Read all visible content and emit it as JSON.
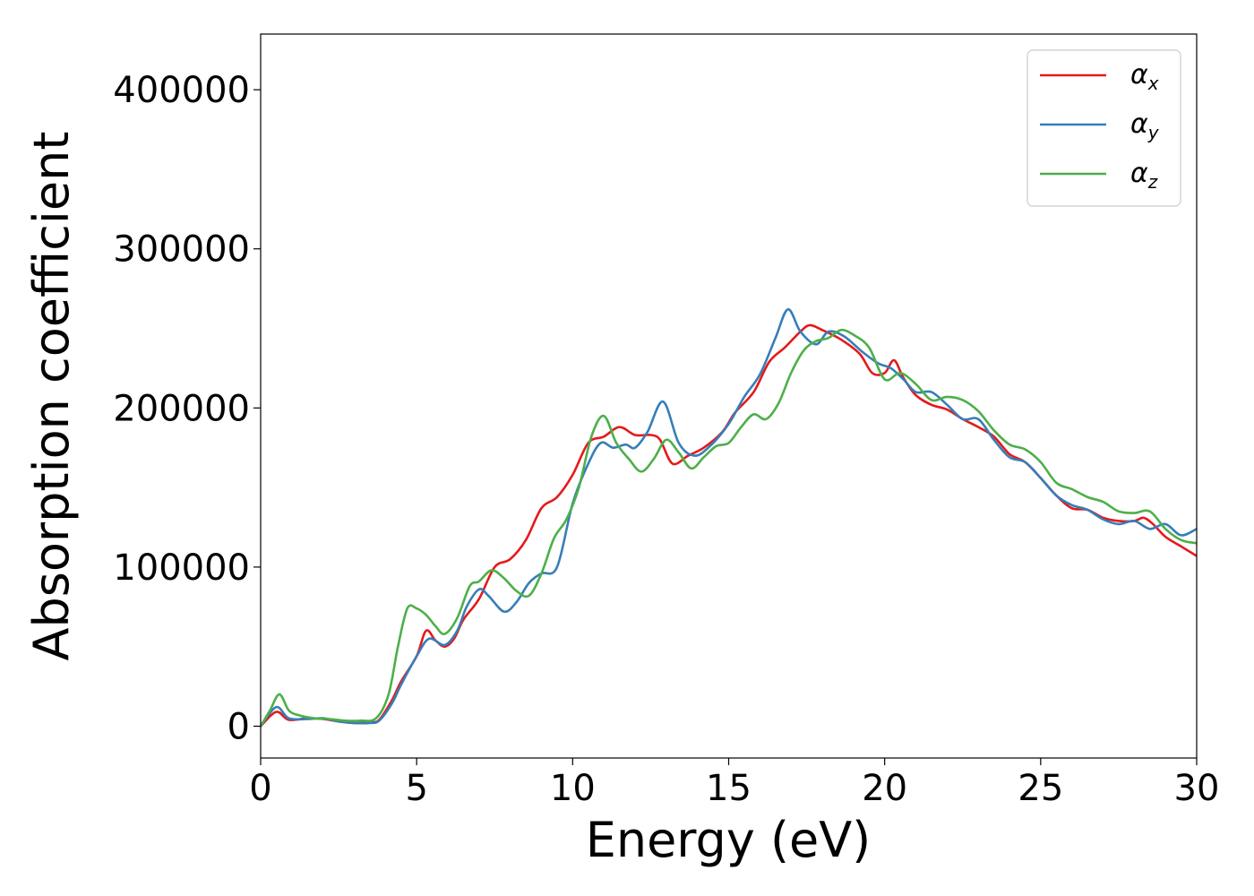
{
  "chart_data": {
    "type": "line",
    "title": "",
    "xlabel": "Energy (eV)",
    "ylabel": "Absorption coefficient",
    "xlim": [
      0,
      30
    ],
    "ylim": [
      -20000,
      435000
    ],
    "xticks": [
      0,
      5,
      10,
      15,
      20,
      25,
      30
    ],
    "xtick_labels": [
      "0",
      "5",
      "10",
      "15",
      "20",
      "25",
      "30"
    ],
    "yticks": [
      0,
      100000,
      200000,
      300000,
      400000
    ],
    "ytick_labels": [
      "0",
      "100000",
      "200000",
      "300000",
      "400000"
    ],
    "grid": false,
    "legend_position": "top-right",
    "series": [
      {
        "name": "α_x",
        "symbol": "α",
        "subscript": "x",
        "color": "#e41a1c",
        "x": [
          0,
          0.5,
          0.9,
          1.5,
          2.0,
          2.5,
          3.0,
          3.5,
          3.8,
          4.2,
          4.5,
          5.0,
          5.3,
          5.6,
          5.9,
          6.2,
          6.5,
          7.0,
          7.5,
          8.0,
          8.5,
          9.0,
          9.5,
          10.0,
          10.5,
          11.0,
          11.5,
          12.0,
          12.5,
          12.8,
          13.2,
          13.7,
          14.2,
          14.8,
          15.2,
          15.8,
          16.3,
          16.8,
          17.3,
          17.6,
          18.0,
          18.6,
          19.2,
          19.6,
          20.0,
          20.3,
          20.6,
          21.0,
          21.5,
          22.0,
          22.5,
          23.0,
          23.5,
          24.0,
          24.5,
          25.0,
          25.5,
          26.0,
          26.5,
          27.0,
          27.5,
          28.0,
          28.3,
          28.6,
          29.0,
          29.5,
          30.0
        ],
        "y": [
          0,
          9000,
          4000,
          5000,
          4500,
          3000,
          2000,
          2500,
          4000,
          16000,
          28000,
          44000,
          60000,
          54000,
          50000,
          55000,
          67000,
          80000,
          100000,
          105000,
          117000,
          137000,
          144000,
          158000,
          178000,
          182000,
          188000,
          183000,
          183000,
          180000,
          165000,
          170000,
          175000,
          185000,
          197000,
          210000,
          229000,
          238000,
          248000,
          252000,
          249000,
          243000,
          234000,
          222000,
          222000,
          230000,
          219000,
          208000,
          202000,
          199000,
          193000,
          188000,
          182000,
          171000,
          166000,
          156000,
          145000,
          137000,
          136000,
          131000,
          129000,
          129000,
          131000,
          127000,
          119000,
          113000,
          107000
        ]
      },
      {
        "name": "α_y",
        "symbol": "α",
        "subscript": "y",
        "color": "#377eb8",
        "x": [
          0,
          0.5,
          0.9,
          1.5,
          2.0,
          2.5,
          3.0,
          3.5,
          3.8,
          4.2,
          4.5,
          5.0,
          5.4,
          5.9,
          6.3,
          6.6,
          7.0,
          7.3,
          7.8,
          8.2,
          8.6,
          9.0,
          9.5,
          10.0,
          10.5,
          10.9,
          11.3,
          11.7,
          12.0,
          12.4,
          12.9,
          13.4,
          13.9,
          14.4,
          15.0,
          15.5,
          16.0,
          16.5,
          16.9,
          17.3,
          17.8,
          18.2,
          18.7,
          19.3,
          19.8,
          20.2,
          20.6,
          21.0,
          21.5,
          22.0,
          22.5,
          23.0,
          23.5,
          24.0,
          24.5,
          25.0,
          25.5,
          26.0,
          26.5,
          27.0,
          27.5,
          28.0,
          28.5,
          29.0,
          29.5,
          30.0
        ],
        "y": [
          0,
          12000,
          5000,
          4500,
          5000,
          3000,
          2000,
          2000,
          3500,
          14000,
          26000,
          44000,
          55000,
          51000,
          60000,
          75000,
          86000,
          82000,
          72000,
          78000,
          90000,
          96000,
          100000,
          140000,
          165000,
          178000,
          175000,
          177000,
          175000,
          185000,
          204000,
          178000,
          170000,
          176000,
          190000,
          207000,
          221000,
          244000,
          262000,
          248000,
          240000,
          248000,
          245000,
          235000,
          228000,
          225000,
          218000,
          210000,
          210000,
          202000,
          193000,
          193000,
          180000,
          169000,
          166000,
          156000,
          145000,
          139000,
          136000,
          130000,
          127000,
          129000,
          124000,
          127000,
          120000,
          124000
        ]
      },
      {
        "name": "α_z",
        "symbol": "α",
        "subscript": "z",
        "color": "#4daf4a",
        "x": [
          0,
          0.3,
          0.6,
          0.9,
          1.2,
          1.7,
          2.2,
          2.7,
          3.2,
          3.7,
          4.1,
          4.4,
          4.7,
          5.0,
          5.3,
          5.6,
          5.9,
          6.3,
          6.7,
          7.0,
          7.4,
          7.8,
          8.2,
          8.6,
          9.0,
          9.4,
          9.8,
          10.2,
          10.6,
          11.0,
          11.4,
          11.8,
          12.2,
          12.6,
          13.0,
          13.4,
          13.8,
          14.2,
          14.6,
          15.0,
          15.4,
          15.8,
          16.2,
          16.6,
          17.0,
          17.4,
          17.8,
          18.2,
          18.6,
          19.0,
          19.5,
          20.0,
          20.5,
          21.0,
          21.5,
          22.0,
          22.5,
          23.0,
          23.5,
          24.0,
          24.5,
          25.0,
          25.5,
          26.0,
          26.5,
          27.0,
          27.5,
          28.0,
          28.5,
          29.0,
          29.5,
          30.0
        ],
        "y": [
          0,
          10000,
          20000,
          10000,
          7000,
          5000,
          4500,
          3500,
          3500,
          5000,
          20000,
          50000,
          74000,
          74000,
          70000,
          63000,
          58000,
          68000,
          88000,
          91000,
          98000,
          93000,
          85000,
          82000,
          96000,
          118000,
          130000,
          150000,
          182000,
          195000,
          178000,
          168000,
          160000,
          168000,
          180000,
          172000,
          162000,
          169000,
          176000,
          178000,
          188000,
          196000,
          193000,
          203000,
          222000,
          236000,
          242000,
          244000,
          249000,
          246000,
          238000,
          218000,
          222000,
          215000,
          205000,
          207000,
          205000,
          198000,
          186000,
          177000,
          174000,
          166000,
          153000,
          149000,
          144000,
          141000,
          135000,
          134000,
          135000,
          124000,
          117000,
          115000
        ]
      }
    ]
  }
}
